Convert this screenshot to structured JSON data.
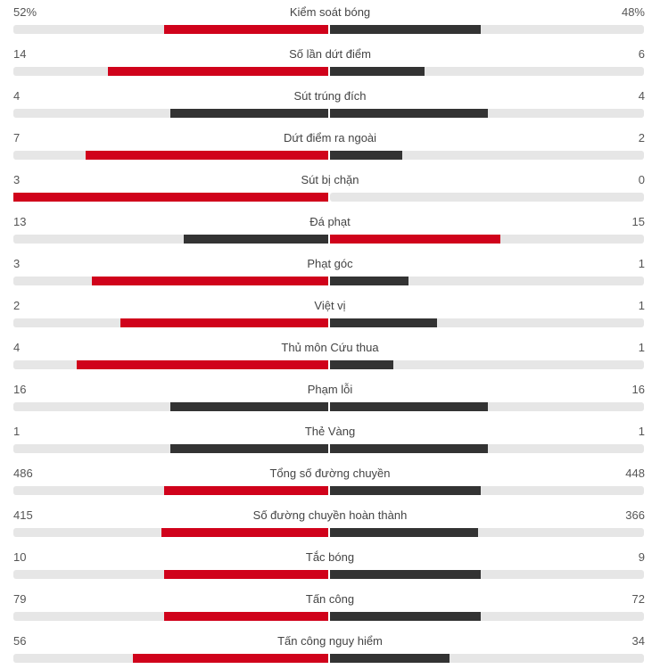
{
  "colors": {
    "home": "#d0021b",
    "away": "#333333",
    "track": "#e6e6e6"
  },
  "stats": [
    {
      "label": "Kiểm soát bóng",
      "home": "52%",
      "away": "48%",
      "home_share": 0.52,
      "away_share": 0.48,
      "home_color": "#d0021b",
      "away_color": "#333333"
    },
    {
      "label": "Số lần dứt điểm",
      "home": "14",
      "away": "6",
      "home_share": 0.7,
      "away_share": 0.3,
      "home_color": "#d0021b",
      "away_color": "#333333"
    },
    {
      "label": "Sút trúng đích",
      "home": "4",
      "away": "4",
      "home_share": 0.5,
      "away_share": 0.5,
      "home_color": "#333333",
      "away_color": "#333333"
    },
    {
      "label": "Dứt điểm ra ngoài",
      "home": "7",
      "away": "2",
      "home_share": 0.77,
      "away_share": 0.23,
      "home_color": "#d0021b",
      "away_color": "#333333"
    },
    {
      "label": "Sút bị chặn",
      "home": "3",
      "away": "0",
      "home_share": 1.0,
      "away_share": 0.0,
      "home_color": "#d0021b",
      "away_color": "#333333"
    },
    {
      "label": "Đá phạt",
      "home": "13",
      "away": "15",
      "home_share": 0.46,
      "away_share": 0.54,
      "home_color": "#333333",
      "away_color": "#d0021b"
    },
    {
      "label": "Phạt góc",
      "home": "3",
      "away": "1",
      "home_share": 0.75,
      "away_share": 0.25,
      "home_color": "#d0021b",
      "away_color": "#333333"
    },
    {
      "label": "Việt vị",
      "home": "2",
      "away": "1",
      "home_share": 0.66,
      "away_share": 0.34,
      "home_color": "#d0021b",
      "away_color": "#333333"
    },
    {
      "label": "Thủ môn Cứu thua",
      "home": "4",
      "away": "1",
      "home_share": 0.8,
      "away_share": 0.2,
      "home_color": "#d0021b",
      "away_color": "#333333"
    },
    {
      "label": "Phạm lỗi",
      "home": "16",
      "away": "16",
      "home_share": 0.5,
      "away_share": 0.5,
      "home_color": "#333333",
      "away_color": "#333333"
    },
    {
      "label": "Thẻ Vàng",
      "home": "1",
      "away": "1",
      "home_share": 0.5,
      "away_share": 0.5,
      "home_color": "#333333",
      "away_color": "#333333"
    },
    {
      "label": "Tổng số đường chuyền",
      "home": "486",
      "away": "448",
      "home_share": 0.52,
      "away_share": 0.48,
      "home_color": "#d0021b",
      "away_color": "#333333"
    },
    {
      "label": "Số đường chuyền hoàn thành",
      "home": "415",
      "away": "366",
      "home_share": 0.53,
      "away_share": 0.47,
      "home_color": "#d0021b",
      "away_color": "#333333"
    },
    {
      "label": "Tắc bóng",
      "home": "10",
      "away": "9",
      "home_share": 0.52,
      "away_share": 0.48,
      "home_color": "#d0021b",
      "away_color": "#333333"
    },
    {
      "label": "Tấn công",
      "home": "79",
      "away": "72",
      "home_share": 0.52,
      "away_share": 0.48,
      "home_color": "#d0021b",
      "away_color": "#333333"
    },
    {
      "label": "Tấn công nguy hiểm",
      "home": "56",
      "away": "34",
      "home_share": 0.62,
      "away_share": 0.38,
      "home_color": "#d0021b",
      "away_color": "#333333"
    }
  ]
}
